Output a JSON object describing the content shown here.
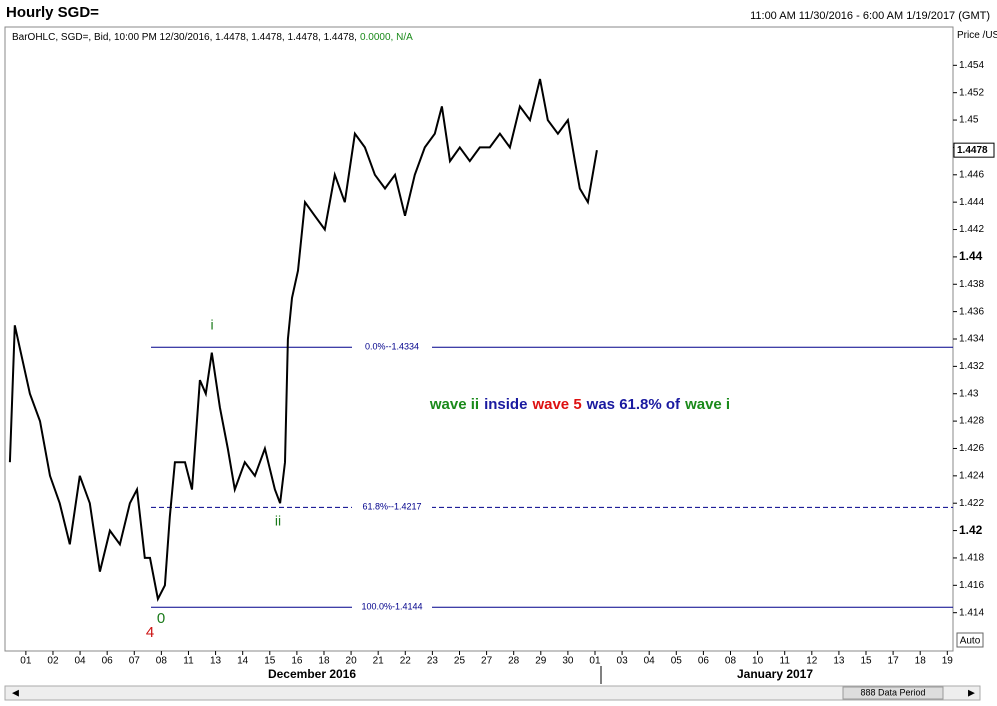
{
  "header": {
    "title": "Hourly SGD=",
    "range": "11:00 AM 11/30/2016 - 6:00 AM 1/19/2017 (GMT)"
  },
  "legend_info": {
    "text": "BarOHLC, SGD=, Bid, 10:00 PM 12/30/2016, 1.4478, 1.4478, 1.4478, 1.4478,",
    "change": "0.0000, N/A"
  },
  "chart_data": {
    "type": "line",
    "y_axis_label": "Price /USD",
    "auto_button": "Auto",
    "months": [
      "December 2016",
      "January 2017"
    ],
    "scrollbar_label": "888 Data Period",
    "xlim": [
      -0.77,
      34.21
    ],
    "ylim": [
      1.4112,
      1.4568
    ],
    "yticks": [
      1.414,
      1.416,
      1.418,
      1.42,
      1.422,
      1.424,
      1.426,
      1.428,
      1.43,
      1.432,
      1.434,
      1.436,
      1.438,
      1.44,
      1.442,
      1.444,
      1.446,
      1.448,
      1.45,
      1.452,
      1.454
    ],
    "bold_yticks": [
      1.42,
      1.44
    ],
    "xticks": [
      {
        "value": 0,
        "label": "01"
      },
      {
        "value": 1,
        "label": "02"
      },
      {
        "value": 2,
        "label": "04"
      },
      {
        "value": 3,
        "label": "06"
      },
      {
        "value": 4,
        "label": "07"
      },
      {
        "value": 5,
        "label": "08"
      },
      {
        "value": 6,
        "label": "11"
      },
      {
        "value": 7,
        "label": "13"
      },
      {
        "value": 8,
        "label": "14"
      },
      {
        "value": 9,
        "label": "15"
      },
      {
        "value": 10,
        "label": "16"
      },
      {
        "value": 11,
        "label": "18"
      },
      {
        "value": 12,
        "label": "20"
      },
      {
        "value": 13,
        "label": "21"
      },
      {
        "value": 14,
        "label": "22"
      },
      {
        "value": 15,
        "label": "23"
      },
      {
        "value": 16,
        "label": "25"
      },
      {
        "value": 17,
        "label": "27"
      },
      {
        "value": 18,
        "label": "28"
      },
      {
        "value": 19,
        "label": "29"
      },
      {
        "value": 20,
        "label": "30"
      },
      {
        "value": 21,
        "label": "01"
      },
      {
        "value": 22,
        "label": "03"
      },
      {
        "value": 23,
        "label": "04"
      },
      {
        "value": 24,
        "label": "05"
      },
      {
        "value": 25,
        "label": "06"
      },
      {
        "value": 26,
        "label": "08"
      },
      {
        "value": 27,
        "label": "10"
      },
      {
        "value": 28,
        "label": "11"
      },
      {
        "value": 29,
        "label": "12"
      },
      {
        "value": 30,
        "label": "13"
      },
      {
        "value": 31,
        "label": "15"
      },
      {
        "value": 32,
        "label": "17"
      },
      {
        "value": 33,
        "label": "18"
      },
      {
        "value": 34,
        "label": "19"
      }
    ],
    "series": [
      {
        "name": "SGD=",
        "color": "#000000",
        "x": [
          -0.59,
          -0.41,
          0.15,
          0.52,
          0.89,
          1.25,
          1.62,
          1.99,
          2.36,
          2.73,
          3.1,
          3.47,
          3.84,
          4.1,
          4.39,
          4.58,
          4.87,
          5.13,
          5.31,
          5.5,
          5.87,
          6.13,
          6.42,
          6.64,
          6.86,
          7.16,
          7.45,
          7.71,
          8.08,
          8.45,
          8.82,
          9.19,
          9.38,
          9.56,
          9.67,
          9.82,
          10.04,
          10.3,
          10.66,
          11.03,
          11.4,
          11.77,
          12.14,
          12.51,
          12.88,
          13.25,
          13.62,
          13.99,
          14.35,
          14.72,
          15.09,
          15.35,
          15.65,
          16.01,
          16.38,
          16.75,
          17.12,
          17.49,
          17.86,
          18.23,
          18.6,
          18.97,
          19.26,
          19.63,
          20.0,
          20.26,
          20.44,
          20.74,
          21.07
        ],
        "values": [
          1.425,
          1.435,
          1.43,
          1.428,
          1.424,
          1.422,
          1.419,
          1.424,
          1.422,
          1.417,
          1.42,
          1.419,
          1.422,
          1.423,
          1.418,
          1.418,
          1.415,
          1.416,
          1.421,
          1.425,
          1.425,
          1.423,
          1.431,
          1.43,
          1.433,
          1.429,
          1.426,
          1.423,
          1.425,
          1.424,
          1.426,
          1.423,
          1.422,
          1.425,
          1.434,
          1.437,
          1.439,
          1.444,
          1.443,
          1.442,
          1.446,
          1.444,
          1.449,
          1.448,
          1.446,
          1.445,
          1.446,
          1.443,
          1.446,
          1.448,
          1.449,
          1.451,
          1.447,
          1.448,
          1.447,
          1.448,
          1.448,
          1.449,
          1.448,
          1.451,
          1.45,
          1.453,
          1.45,
          1.449,
          1.45,
          1.447,
          1.445,
          1.444,
          1.4478
        ]
      }
    ],
    "fib_levels": [
      {
        "value": 1.4334,
        "label": "0.0%--1.4334",
        "color": "#00008b",
        "dashed": false
      },
      {
        "value": 1.4217,
        "label": "61.8%--1.4217",
        "color": "#00008b",
        "dashed": true
      },
      {
        "value": 1.4144,
        "label": "100.0%-1.4144",
        "color": "#00008b",
        "dashed": false
      }
    ],
    "wave_labels": [
      {
        "text": "i",
        "color": "#1a7a1a"
      },
      {
        "text": "ii",
        "color": "#1a7a1a"
      },
      {
        "text": "4",
        "color": "#cc1111"
      },
      {
        "text": "0",
        "color": "#1a7a1a"
      }
    ],
    "annotation": [
      {
        "text": "wave ii",
        "color": "#1a8a1a"
      },
      {
        "text": "inside",
        "color": "#1a1aa0"
      },
      {
        "text": "wave 5",
        "color": "#dd1111"
      },
      {
        "text": "was 61.8% of",
        "color": "#1a1aa0"
      },
      {
        "text": "wave i",
        "color": "#1a8a1a"
      }
    ]
  }
}
